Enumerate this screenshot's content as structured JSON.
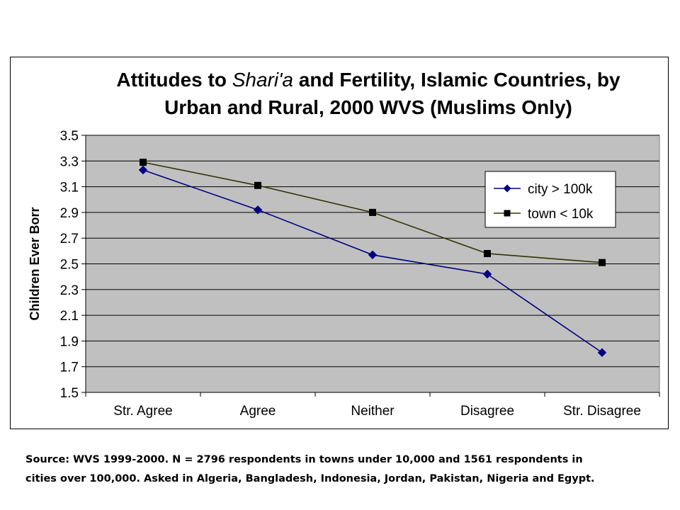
{
  "chart_data": {
    "type": "line",
    "title_line1_prefix": "Attitudes to ",
    "title_line1_italic": "Shari'a",
    "title_line1_suffix": " and Fertility, Islamic Countries, by",
    "title_line2": "Urban and Rural, 2000 WVS (Muslims Only)",
    "xlabel": "",
    "ylabel": "Children Ever Borr",
    "ylim": [
      1.5,
      3.5
    ],
    "yticks": [
      "1.5",
      "1.7",
      "1.9",
      "2.1",
      "2.3",
      "2.5",
      "2.7",
      "2.9",
      "3.1",
      "3.3",
      "3.5"
    ],
    "categories": [
      "Str. Agree",
      "Agree",
      "Neither",
      "Disagree",
      "Str. Disagree"
    ],
    "grid": "horizontal",
    "legend_position": "right",
    "series": [
      {
        "name": "city > 100k",
        "values": [
          3.23,
          2.92,
          2.57,
          2.42,
          1.81
        ],
        "color": "#000080",
        "marker": "diamond"
      },
      {
        "name": "town < 10k",
        "values": [
          3.29,
          3.11,
          2.9,
          2.58,
          2.51
        ],
        "color": "#333300",
        "marker": "square"
      }
    ],
    "plot_background": "#c0c0c0"
  },
  "caption": {
    "line1": "Source: WVS 1999-2000. N = 2796 respondents in towns under 10,000 and 1561 respondents in",
    "line2": "cities over 100,000. Asked in Algeria, Bangladesh,  Indonesia, Jordan, Pakistan,  Nigeria and Egypt."
  }
}
